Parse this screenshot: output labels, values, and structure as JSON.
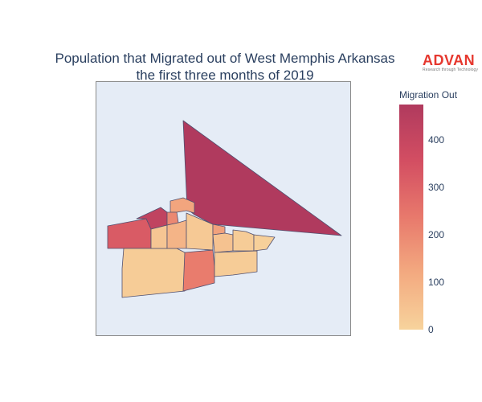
{
  "title": {
    "line1": "Population that Migrated out of West Memphis Arkansas",
    "line2": "the first three months of 2019"
  },
  "logo": {
    "word": "ADVAN",
    "tagline": "Research through Technology"
  },
  "colorbar": {
    "title": "Migration Out",
    "ticks": [
      "0",
      "100",
      "200",
      "300",
      "400"
    ],
    "colorscale": [
      "#f7d39c",
      "#f3aa80",
      "#e8796c",
      "#d34e62",
      "#b03a5e"
    ],
    "max": 475
  },
  "regions": [
    {
      "id": "large-northeast",
      "value": 475
    },
    {
      "id": "west",
      "value": 320
    },
    {
      "id": "north-strip",
      "value": 420
    },
    {
      "id": "sw",
      "value": 20
    },
    {
      "id": "central-south",
      "value": 230
    },
    {
      "id": "north-center",
      "value": 130
    },
    {
      "id": "east-small-1",
      "value": 140
    },
    {
      "id": "mid",
      "value": 40
    },
    {
      "id": "mid-2",
      "value": 90
    },
    {
      "id": "center-block",
      "value": 30
    },
    {
      "id": "east-1",
      "value": 50
    },
    {
      "id": "east-2",
      "value": 20
    },
    {
      "id": "east-3",
      "value": 10
    },
    {
      "id": "south-mid",
      "value": 20
    },
    {
      "id": "small-a",
      "value": 200
    }
  ]
}
